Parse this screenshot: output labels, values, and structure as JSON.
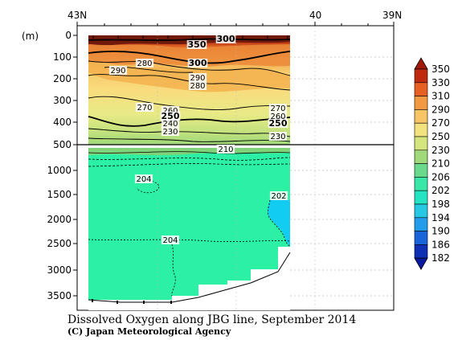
{
  "chart_data": {
    "type": "heatmap",
    "title": "Dissolved Oxygen along JBG line, September 2014",
    "credit": "(C) Japan Meteorological Agency",
    "ylabel": "(m)",
    "x_ticks": [
      "43N",
      "40",
      "39N"
    ],
    "y_ticks_upper": [
      "0",
      "100",
      "200",
      "300",
      "400",
      "500"
    ],
    "y_ticks_lower": [
      "1000",
      "1500",
      "2000",
      "2500",
      "3000",
      "3500"
    ],
    "colorbar": {
      "levels": [
        "350",
        "330",
        "310",
        "290",
        "270",
        "250",
        "230",
        "210",
        "206",
        "202",
        "198",
        "194",
        "190",
        "186",
        "182"
      ],
      "colors": [
        "#a01808",
        "#dc3c14",
        "#f08232",
        "#f5b050",
        "#f8d97a",
        "#ecec82",
        "#c0e07a",
        "#80d278",
        "#52e0a0",
        "#20f0b0",
        "#28d8d8",
        "#24b8f0",
        "#1e82e8",
        "#1446c8",
        "#0a1aa0"
      ]
    },
    "contour_labels": [
      {
        "value": "300",
        "bold": true
      },
      {
        "value": "350",
        "bold": true
      },
      {
        "value": "280",
        "bold": false
      },
      {
        "value": "300",
        "bold": true
      },
      {
        "value": "290",
        "bold": false
      },
      {
        "value": "290",
        "bold": false
      },
      {
        "value": "280",
        "bold": false
      },
      {
        "value": "270",
        "bold": false
      },
      {
        "value": "260",
        "bold": false
      },
      {
        "value": "270",
        "bold": false
      },
      {
        "value": "250",
        "bold": true
      },
      {
        "value": "240",
        "bold": false
      },
      {
        "value": "230",
        "bold": false
      },
      {
        "value": "260",
        "bold": false
      },
      {
        "value": "250",
        "bold": true
      },
      {
        "value": "230",
        "bold": false
      },
      {
        "value": "210",
        "bold": false
      },
      {
        "value": "204",
        "bold": false
      },
      {
        "value": "202",
        "bold": false
      },
      {
        "value": "204",
        "bold": false
      }
    ]
  }
}
